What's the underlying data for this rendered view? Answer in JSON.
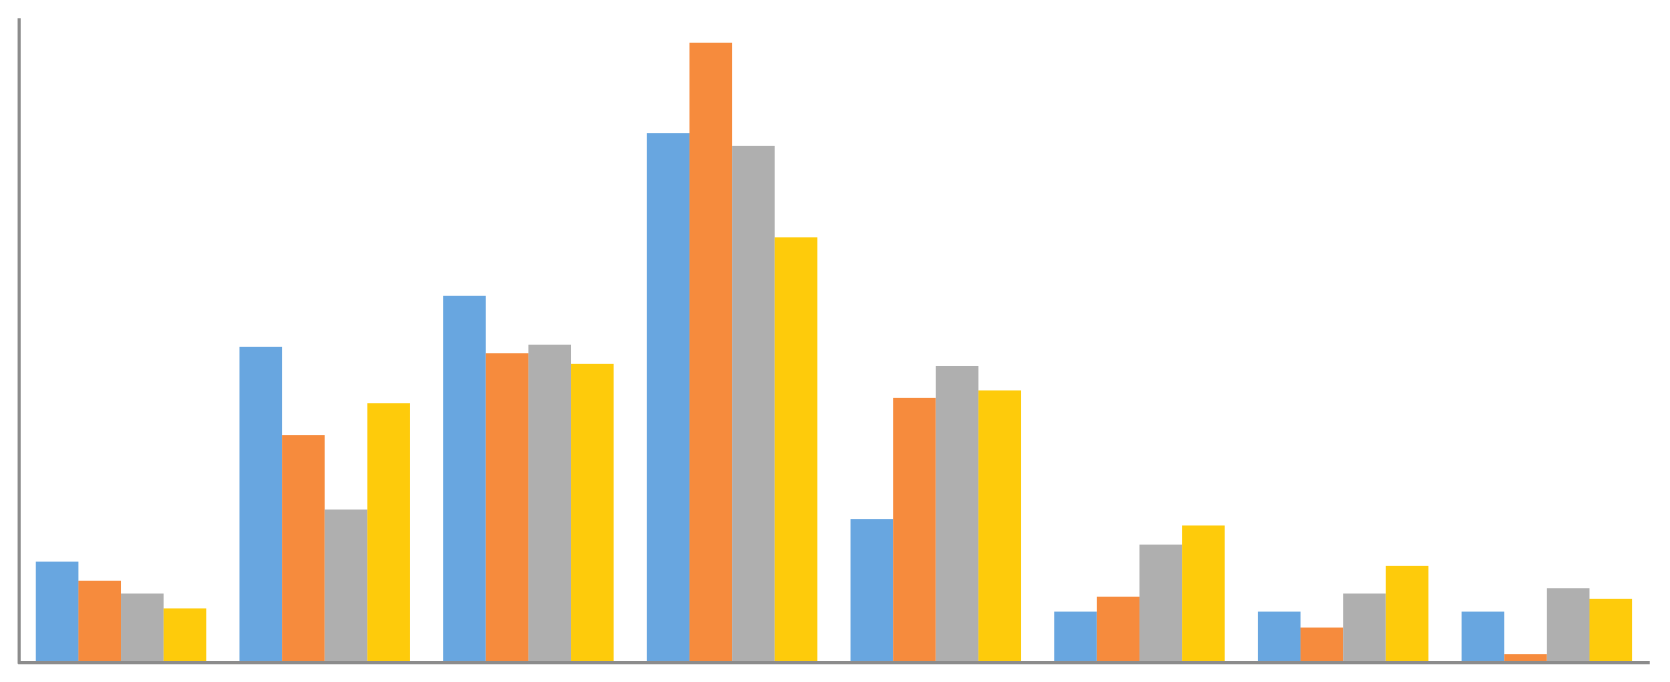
{
  "chart_data": {
    "type": "bar",
    "categories": [
      null,
      null,
      null,
      null,
      null,
      null,
      null,
      null
    ],
    "series": [
      {
        "color": "#68a6e0",
        "values": [
          94,
          296,
          344,
          497,
          134,
          47,
          47,
          47
        ]
      },
      {
        "color": "#f68b3d",
        "values": [
          76,
          213,
          290,
          582,
          248,
          61,
          32,
          7
        ]
      },
      {
        "color": "#afafaf",
        "values": [
          64,
          143,
          298,
          485,
          278,
          110,
          64,
          69
        ]
      },
      {
        "color": "#fecb0b",
        "values": [
          50,
          243,
          280,
          399,
          255,
          128,
          90,
          59
        ]
      }
    ],
    "ylim": [
      0,
      605
    ]
  }
}
